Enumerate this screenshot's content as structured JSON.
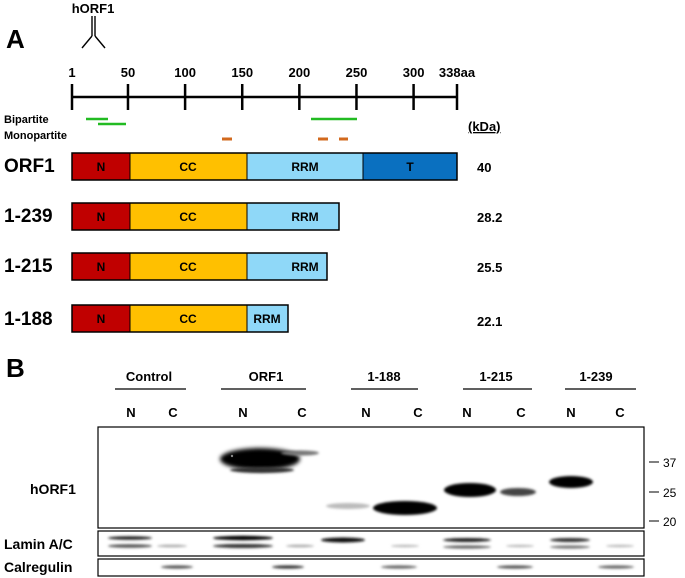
{
  "panel_a": {
    "label": "A",
    "antibody_label": "hORF1",
    "scale": {
      "ticks": [
        "1",
        "50",
        "100",
        "150",
        "200",
        "250",
        "300",
        "338aa"
      ],
      "tick_positions_aa": [
        1,
        50,
        100,
        150,
        200,
        250,
        300,
        338
      ]
    },
    "nls": {
      "bipartite_label": "Bipartite",
      "monopartite_label": "Monopartite",
      "bipartite_color": "#22bb22",
      "monopartite_color": "#d2691e"
    },
    "kda_header": "(kDa)",
    "domain_colors": {
      "N": "#c00000",
      "CC": "#ffc000",
      "RRM": "#8fd8f8",
      "T": "#0a70c0"
    },
    "constructs": [
      {
        "name": "ORF1",
        "kda": "40",
        "domains": [
          "N",
          "CC",
          "RRM",
          "T"
        ]
      },
      {
        "name": "1-239",
        "kda": "28.2",
        "domains": [
          "N",
          "CC",
          "RRM"
        ]
      },
      {
        "name": "1-215",
        "kda": "25.5",
        "domains": [
          "N",
          "CC",
          "RRM"
        ]
      },
      {
        "name": "1-188",
        "kda": "22.1",
        "domains": [
          "N",
          "CC",
          "RRM"
        ]
      }
    ]
  },
  "panel_b": {
    "label": "B",
    "groups": [
      "Control",
      "ORF1",
      "1-188",
      "1-215",
      "1-239"
    ],
    "lanes": [
      "N",
      "C",
      "N",
      "C",
      "N",
      "C",
      "N",
      "C",
      "N",
      "C"
    ],
    "blots": {
      "main": "hORF1",
      "lamin": "Lamin A/C",
      "calregulin": "Calregulin"
    },
    "markers": [
      "37",
      "25",
      "20"
    ]
  }
}
